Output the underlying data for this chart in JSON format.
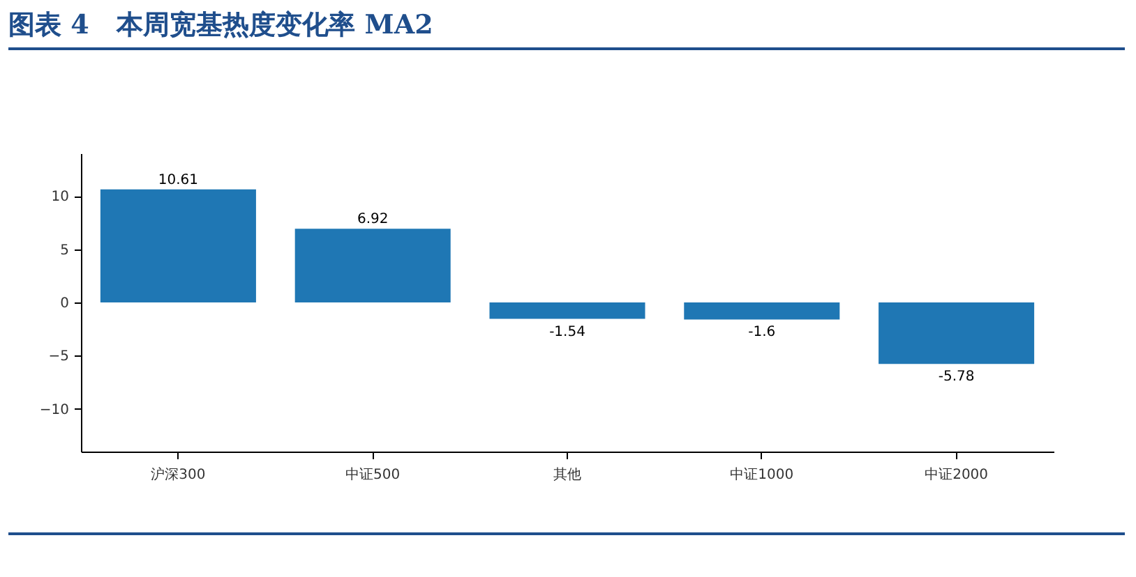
{
  "chart_data": {
    "type": "bar",
    "title": "图表 4   本周宽基热度变化率 MA2",
    "categories": [
      "沪深300",
      "中证500",
      "其他",
      "中证1000",
      "中证2000"
    ],
    "values": [
      10.61,
      6.92,
      -1.54,
      -1.6,
      -5.78
    ],
    "color": "#1f77b4",
    "ylim": [
      -14,
      14
    ],
    "yticks": [
      -10,
      -5,
      0,
      5,
      10
    ],
    "grid": false,
    "data_labels": true
  }
}
